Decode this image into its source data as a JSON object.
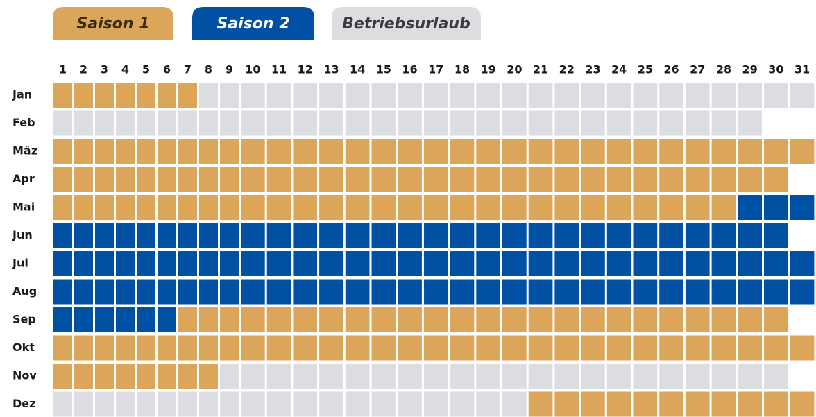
{
  "legend": [
    {
      "label": "Saison 1",
      "color": "#dba659",
      "text_color": "#3a2a10"
    },
    {
      "label": "Saison 2",
      "color": "#0051a3",
      "text_color": "#ffffff"
    },
    {
      "label": "Betriebsurlaub",
      "color": "#dcdde0",
      "text_color": "#3c3c3c"
    }
  ],
  "days": [
    "1",
    "2",
    "3",
    "4",
    "5",
    "6",
    "7",
    "8",
    "9",
    "10",
    "11",
    "12",
    "13",
    "14",
    "15",
    "16",
    "17",
    "18",
    "19",
    "20",
    "21",
    "22",
    "23",
    "24",
    "25",
    "26",
    "27",
    "28",
    "29",
    "30",
    "31"
  ],
  "months": [
    {
      "label": "Jan",
      "runs": [
        {
          "legend": 0,
          "days": 7
        },
        {
          "legend": 2,
          "days": 24
        }
      ]
    },
    {
      "label": "Feb",
      "runs": [
        {
          "legend": 2,
          "days": 29
        }
      ]
    },
    {
      "label": "Mäz",
      "runs": [
        {
          "legend": 0,
          "days": 31
        }
      ]
    },
    {
      "label": "Apr",
      "runs": [
        {
          "legend": 0,
          "days": 30
        }
      ]
    },
    {
      "label": "Mai",
      "runs": [
        {
          "legend": 0,
          "days": 28
        },
        {
          "legend": 1,
          "days": 3
        }
      ]
    },
    {
      "label": "Jun",
      "runs": [
        {
          "legend": 1,
          "days": 30
        }
      ]
    },
    {
      "label": "Jul",
      "runs": [
        {
          "legend": 1,
          "days": 31
        }
      ]
    },
    {
      "label": "Aug",
      "runs": [
        {
          "legend": 1,
          "days": 31
        }
      ]
    },
    {
      "label": "Sep",
      "runs": [
        {
          "legend": 1,
          "days": 6
        },
        {
          "legend": 0,
          "days": 24
        }
      ]
    },
    {
      "label": "Okt",
      "runs": [
        {
          "legend": 0,
          "days": 31
        }
      ]
    },
    {
      "label": "Nov",
      "runs": [
        {
          "legend": 0,
          "days": 8
        },
        {
          "legend": 2,
          "days": 22
        }
      ]
    },
    {
      "label": "Dez",
      "runs": [
        {
          "legend": 2,
          "days": 20
        },
        {
          "legend": 0,
          "days": 11
        }
      ]
    }
  ]
}
